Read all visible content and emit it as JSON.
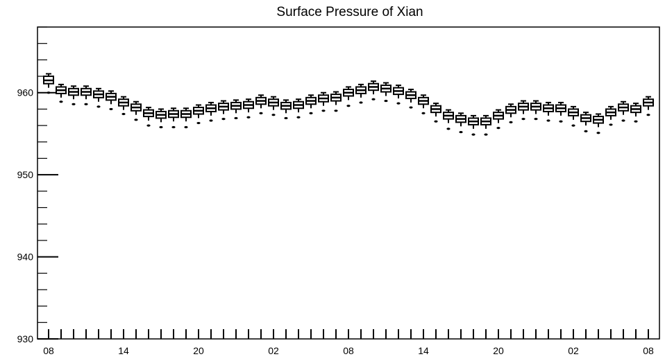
{
  "chart_data": {
    "type": "box",
    "title": "Surface Pressure of Xian",
    "xlabel": "",
    "ylabel": "",
    "ylim": [
      930,
      968
    ],
    "yticks": [
      930,
      940,
      950,
      960
    ],
    "xtick_labels": [
      "08",
      "14",
      "20",
      "02",
      "08",
      "14",
      "20",
      "02",
      "08"
    ],
    "xtick_label_index": [
      0,
      6,
      12,
      18,
      24,
      30,
      36,
      42,
      48
    ],
    "grid": false,
    "legend": "none",
    "series": [
      {
        "median": [
          961.5,
          960.3,
          960.1,
          960.1,
          959.8,
          959.5,
          958.8,
          958.2,
          957.5,
          957.3,
          957.4,
          957.4,
          957.8,
          958.1,
          958.3,
          958.4,
          958.5,
          959.0,
          958.8,
          958.4,
          958.5,
          959.0,
          959.3,
          959.4,
          960.0,
          960.3,
          960.7,
          960.5,
          960.2,
          959.7,
          959.0,
          958.0,
          957.2,
          956.8,
          956.5,
          956.5,
          957.2,
          957.9,
          958.3,
          958.3,
          958.1,
          958.1,
          957.6,
          956.9,
          956.7,
          957.6,
          958.2,
          958.0,
          958.8
        ],
        "q1": [
          961.1,
          959.9,
          959.7,
          959.7,
          959.4,
          959.1,
          958.4,
          957.8,
          957.1,
          956.9,
          957.0,
          957.0,
          957.4,
          957.7,
          957.9,
          958.0,
          958.1,
          958.6,
          958.4,
          958.0,
          958.1,
          958.6,
          958.9,
          959.0,
          959.6,
          959.9,
          960.3,
          960.1,
          959.8,
          959.3,
          958.6,
          957.6,
          956.8,
          956.4,
          956.1,
          956.1,
          956.8,
          957.5,
          957.9,
          957.9,
          957.7,
          957.7,
          957.2,
          956.5,
          956.3,
          957.2,
          957.8,
          957.6,
          958.4
        ],
        "q3": [
          962.0,
          960.7,
          960.5,
          960.5,
          960.2,
          959.9,
          959.2,
          958.6,
          957.9,
          957.7,
          957.8,
          957.8,
          958.2,
          958.5,
          958.7,
          958.8,
          958.9,
          959.4,
          959.2,
          958.8,
          958.9,
          959.4,
          959.7,
          959.8,
          960.4,
          960.7,
          961.1,
          960.9,
          960.6,
          960.1,
          959.4,
          958.4,
          957.6,
          957.2,
          956.9,
          956.9,
          957.6,
          958.3,
          958.7,
          958.7,
          958.5,
          958.5,
          958.0,
          957.3,
          957.1,
          958.0,
          958.6,
          958.4,
          959.2
        ],
        "min": [
          960.6,
          959.4,
          959.2,
          959.2,
          958.9,
          958.6,
          957.9,
          957.3,
          956.6,
          956.4,
          956.5,
          956.5,
          956.9,
          957.2,
          957.4,
          957.5,
          957.6,
          958.1,
          957.9,
          957.5,
          957.6,
          958.1,
          958.4,
          958.5,
          959.1,
          959.4,
          959.8,
          959.6,
          959.3,
          958.8,
          958.1,
          957.1,
          956.3,
          955.9,
          955.6,
          955.6,
          956.3,
          957.0,
          957.4,
          957.4,
          957.2,
          957.2,
          956.7,
          956.0,
          955.8,
          956.7,
          957.3,
          957.1,
          957.9
        ],
        "max": [
          962.3,
          961.0,
          960.8,
          960.8,
          960.5,
          960.2,
          959.5,
          958.9,
          958.2,
          958.0,
          958.1,
          958.1,
          958.5,
          958.8,
          959.0,
          959.1,
          959.2,
          959.7,
          959.5,
          959.1,
          959.2,
          959.7,
          960.0,
          960.1,
          960.7,
          961.0,
          961.4,
          961.2,
          960.9,
          960.4,
          959.7,
          958.7,
          957.9,
          957.5,
          957.2,
          957.2,
          957.9,
          958.6,
          959.0,
          959.0,
          958.8,
          958.8,
          958.3,
          957.6,
          957.4,
          958.3,
          958.9,
          958.7,
          959.5
        ],
        "outlier": [
          960.0,
          958.9,
          958.6,
          958.6,
          958.3,
          958.0,
          957.4,
          956.7,
          956.0,
          955.8,
          955.8,
          955.8,
          956.3,
          956.6,
          956.8,
          956.9,
          957.0,
          957.5,
          957.3,
          956.9,
          957.0,
          957.5,
          957.8,
          957.8,
          958.4,
          958.8,
          959.2,
          959.0,
          958.7,
          958.2,
          957.5,
          956.5,
          955.6,
          955.2,
          954.9,
          954.9,
          955.7,
          956.4,
          956.8,
          956.8,
          956.6,
          956.5,
          956.0,
          955.3,
          955.1,
          956.1,
          956.6,
          956.5,
          957.3
        ]
      }
    ]
  }
}
